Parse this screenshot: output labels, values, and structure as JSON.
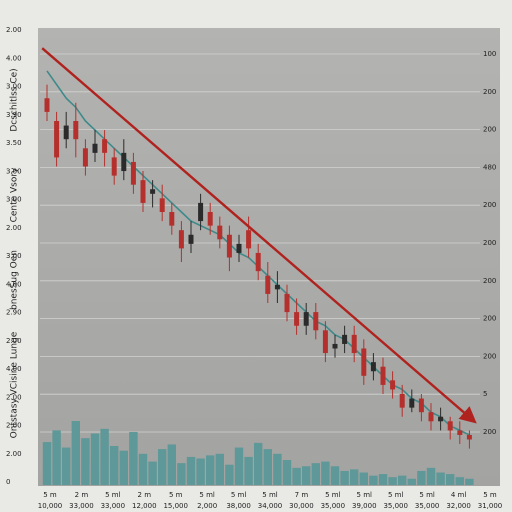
{
  "chart_data": {
    "type": "candlestick",
    "left_labels": [
      "2.00",
      "4.00",
      "3.00",
      "3.90",
      "3.50",
      "3.00",
      "3.00",
      "2.00",
      "3.00",
      "4.00",
      "2.90",
      "2.00",
      "4.00",
      "2.00",
      "2.00",
      "2.00",
      "0"
    ],
    "right_labels": [
      "100",
      "200",
      "200",
      "480",
      "200",
      "200",
      "200",
      "200",
      "200",
      "5",
      "200"
    ],
    "side_texts": [
      "Dcschitlss Ce)",
      "Cente Vsory",
      "bnesSug Oen",
      "Ontstasy VCisine Lunge"
    ],
    "x_labels_top": [
      "5 m",
      "2 m",
      "5 ml",
      "2 m",
      "5 m",
      "5 ml",
      "5 ml",
      "5 ml",
      "7 m",
      "5 ml",
      "5 ml",
      "5 ml",
      "5 ml",
      "4 ml",
      "5 m"
    ],
    "x_labels_bottom": [
      "10,000",
      "33,000",
      "33,000",
      "12,000",
      "15,000",
      "2,000",
      "38,000",
      "34,000",
      "30,000",
      "35,000",
      "39,000",
      "35,000",
      "35,000",
      "32,000",
      "31,000"
    ],
    "ylim": [
      0,
      100
    ],
    "vlim": [
      0,
      100
    ],
    "up_color": "#2b2b2b",
    "down_color": "#b5302c",
    "ma_color": "#3e8a8a",
    "volume_color": "#5e9898",
    "trend_color": "#b0221e",
    "open": [
      85,
      80,
      76,
      80,
      74,
      73,
      76,
      72,
      69,
      71,
      67,
      64,
      63,
      60,
      56,
      53,
      58,
      60,
      57,
      55,
      51,
      56,
      51,
      46,
      43,
      42,
      38,
      35,
      38,
      34,
      30,
      31,
      33,
      30,
      25,
      26,
      23,
      20,
      17,
      19,
      16,
      14,
      14,
      12,
      11
    ],
    "close": [
      82,
      72,
      79,
      76,
      70,
      75,
      73,
      68,
      73,
      66,
      62,
      65,
      60,
      57,
      52,
      55,
      62,
      57,
      54,
      50,
      53,
      52,
      47,
      42,
      44,
      38,
      35,
      38,
      34,
      29,
      31,
      33,
      29,
      24,
      27,
      22,
      21,
      17,
      19,
      16,
      14,
      15,
      12,
      11,
      10
    ],
    "high": [
      88,
      82,
      82,
      84,
      76,
      78,
      78,
      74,
      76,
      73,
      69,
      67,
      66,
      62,
      58,
      58,
      64,
      62,
      59,
      57,
      55,
      59,
      53,
      49,
      47,
      44,
      41,
      40,
      40,
      36,
      33,
      35,
      35,
      32,
      29,
      28,
      25,
      22,
      21,
      20,
      18,
      17,
      15,
      14,
      12
    ],
    "low": [
      80,
      70,
      74,
      72,
      68,
      71,
      70,
      66,
      67,
      64,
      60,
      61,
      58,
      55,
      49,
      51,
      56,
      55,
      52,
      47,
      49,
      50,
      45,
      40,
      40,
      36,
      33,
      33,
      32,
      27,
      28,
      29,
      27,
      22,
      23,
      20,
      19,
      15,
      16,
      14,
      12,
      12,
      10,
      9,
      8
    ],
    "ma": [
      91,
      88,
      85,
      83,
      80,
      78,
      76,
      74,
      72,
      70,
      68,
      66,
      64,
      62,
      60,
      58,
      57,
      56,
      55,
      53,
      51,
      50,
      48,
      46,
      44,
      42,
      40,
      38,
      36,
      35,
      33,
      32,
      30,
      28,
      26,
      24,
      22,
      21,
      19,
      18,
      16,
      15,
      13,
      12,
      11
    ],
    "volume": [
      55,
      70,
      48,
      82,
      60,
      66,
      72,
      50,
      44,
      68,
      40,
      30,
      46,
      52,
      28,
      36,
      34,
      38,
      40,
      26,
      48,
      36,
      54,
      46,
      40,
      32,
      22,
      24,
      28,
      30,
      24,
      18,
      20,
      16,
      12,
      14,
      10,
      12,
      8,
      18,
      22,
      16,
      14,
      10,
      8
    ],
    "trend": {
      "from": [
        -0.5,
        96
      ],
      "to": [
        44.5,
        14
      ]
    }
  }
}
